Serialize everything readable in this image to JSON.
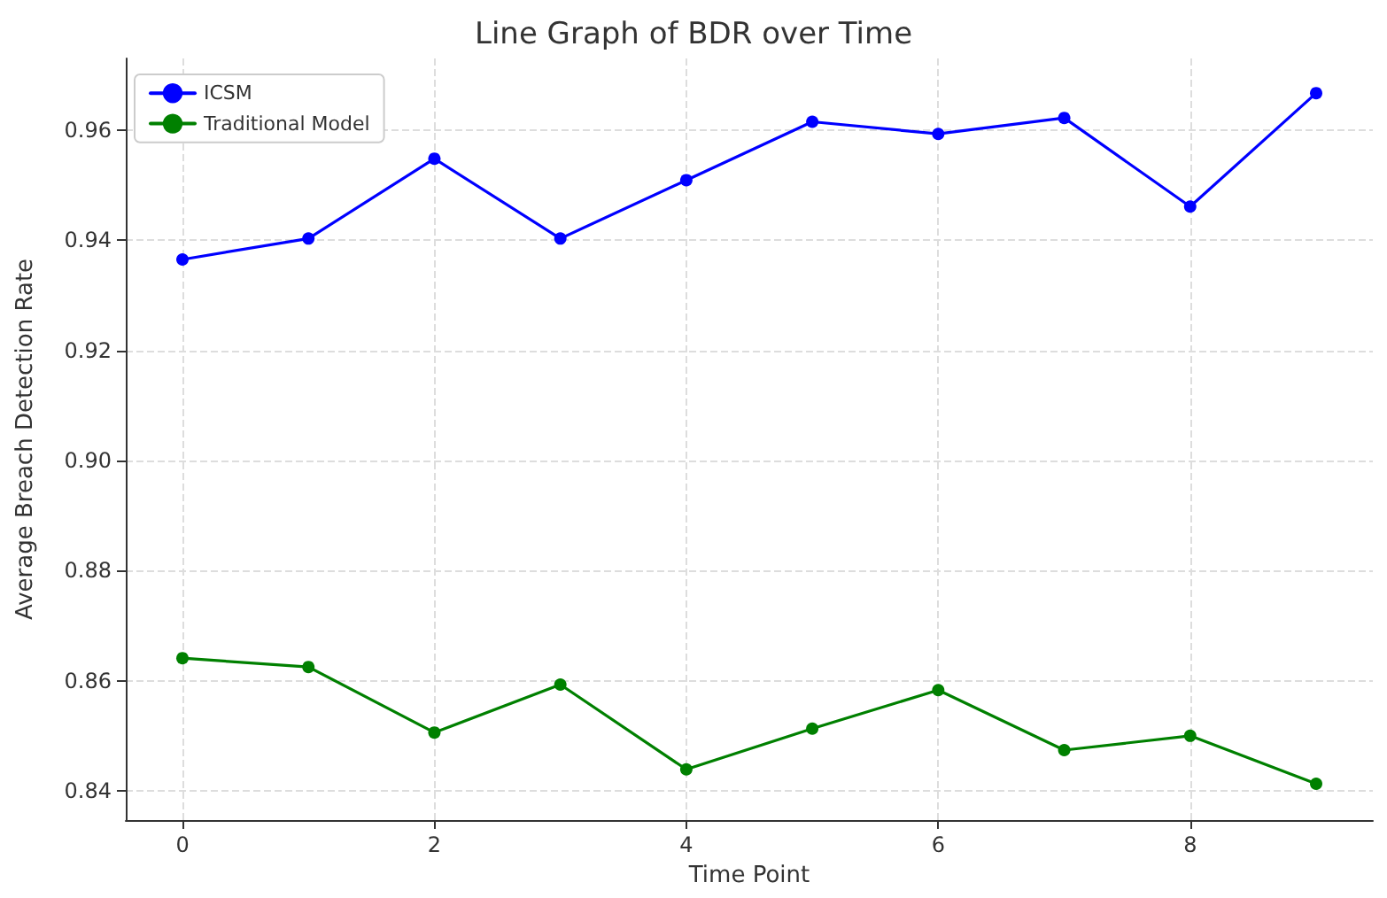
{
  "chart_data": {
    "type": "line",
    "title": "Line Graph of BDR over Time",
    "xlabel": "Time Point",
    "ylabel": "Average Breach Detection Rate",
    "x": [
      0,
      1,
      2,
      3,
      4,
      5,
      6,
      7,
      8,
      9
    ],
    "series": [
      {
        "name": "ICSM",
        "color": "#0000ff",
        "values": [
          0.9365,
          0.9403,
          0.9548,
          0.9403,
          0.9509,
          0.9615,
          0.9593,
          0.9622,
          0.9461,
          0.9667
        ]
      },
      {
        "name": "Traditional Model",
        "color": "#008000",
        "values": [
          0.8641,
          0.8625,
          0.8506,
          0.8593,
          0.8439,
          0.8513,
          0.8583,
          0.8474,
          0.85,
          0.8413
        ]
      }
    ],
    "xlim": [
      -0.45,
      9.45
    ],
    "xticks": [
      0,
      2,
      4,
      6,
      8
    ],
    "ylim": [
      0.8347,
      0.973
    ],
    "yticks": [
      0.84,
      0.86,
      0.88,
      {
        "value": 0.9,
        "label": "0.90"
      },
      0.92,
      0.94,
      0.96
    ],
    "grid": true,
    "legend": "top left",
    "marker": "circle",
    "line_style": "solid"
  }
}
